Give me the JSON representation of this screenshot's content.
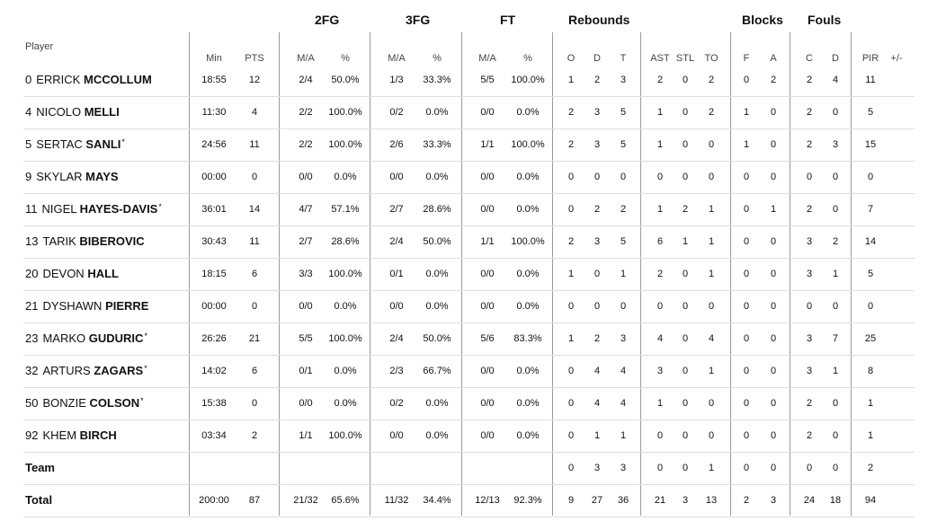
{
  "groups": {
    "fg2": "2FG",
    "fg3": "3FG",
    "ft": "FT",
    "rebounds": "Rebounds",
    "blocks": "Blocks",
    "fouls": "Fouls"
  },
  "headers": {
    "player": "Player",
    "min": "Min",
    "pts": "PTS",
    "fg2_ma": "M/A",
    "fg2_pct": "%",
    "fg3_ma": "M/A",
    "fg3_pct": "%",
    "ft_ma": "M/A",
    "ft_pct": "%",
    "o": "O",
    "d": "D",
    "t": "T",
    "ast": "AST",
    "stl": "STL",
    "to": "TO",
    "blk_f": "F",
    "blk_a": "A",
    "foul_c": "C",
    "foul_d": "D",
    "pir": "PIR",
    "pm": "+/-"
  },
  "rows": [
    {
      "num": "0",
      "first": "ERRICK",
      "last": "MCCOLLUM",
      "star": "",
      "min": "18:55",
      "pts": "12",
      "fg2_ma": "2/4",
      "fg2_pct": "50.0%",
      "fg3_ma": "1/3",
      "fg3_pct": "33.3%",
      "ft_ma": "5/5",
      "ft_pct": "100.0%",
      "o": "1",
      "d": "2",
      "t": "3",
      "ast": "2",
      "stl": "0",
      "to": "2",
      "blk_f": "0",
      "blk_a": "2",
      "foul_c": "2",
      "foul_d": "4",
      "pir": "11",
      "pm": ""
    },
    {
      "num": "4",
      "first": "NICOLO",
      "last": "MELLI",
      "star": "",
      "min": "11:30",
      "pts": "4",
      "fg2_ma": "2/2",
      "fg2_pct": "100.0%",
      "fg3_ma": "0/2",
      "fg3_pct": "0.0%",
      "ft_ma": "0/0",
      "ft_pct": "0.0%",
      "o": "2",
      "d": "3",
      "t": "5",
      "ast": "1",
      "stl": "0",
      "to": "2",
      "blk_f": "1",
      "blk_a": "0",
      "foul_c": "2",
      "foul_d": "0",
      "pir": "5",
      "pm": ""
    },
    {
      "num": "5",
      "first": "SERTAC",
      "last": "SANLI",
      "star": "*",
      "min": "24:56",
      "pts": "11",
      "fg2_ma": "2/2",
      "fg2_pct": "100.0%",
      "fg3_ma": "2/6",
      "fg3_pct": "33.3%",
      "ft_ma": "1/1",
      "ft_pct": "100.0%",
      "o": "2",
      "d": "3",
      "t": "5",
      "ast": "1",
      "stl": "0",
      "to": "0",
      "blk_f": "1",
      "blk_a": "0",
      "foul_c": "2",
      "foul_d": "3",
      "pir": "15",
      "pm": ""
    },
    {
      "num": "9",
      "first": "SKYLAR",
      "last": "MAYS",
      "star": "",
      "min": "00:00",
      "pts": "0",
      "fg2_ma": "0/0",
      "fg2_pct": "0.0%",
      "fg3_ma": "0/0",
      "fg3_pct": "0.0%",
      "ft_ma": "0/0",
      "ft_pct": "0.0%",
      "o": "0",
      "d": "0",
      "t": "0",
      "ast": "0",
      "stl": "0",
      "to": "0",
      "blk_f": "0",
      "blk_a": "0",
      "foul_c": "0",
      "foul_d": "0",
      "pir": "0",
      "pm": ""
    },
    {
      "num": "11",
      "first": "NIGEL",
      "last": "HAYES-DAVIS",
      "star": "*",
      "min": "36:01",
      "pts": "14",
      "fg2_ma": "4/7",
      "fg2_pct": "57.1%",
      "fg3_ma": "2/7",
      "fg3_pct": "28.6%",
      "ft_ma": "0/0",
      "ft_pct": "0.0%",
      "o": "0",
      "d": "2",
      "t": "2",
      "ast": "1",
      "stl": "2",
      "to": "1",
      "blk_f": "0",
      "blk_a": "1",
      "foul_c": "2",
      "foul_d": "0",
      "pir": "7",
      "pm": ""
    },
    {
      "num": "13",
      "first": "TARIK",
      "last": "BIBEROVIC",
      "star": "",
      "min": "30:43",
      "pts": "11",
      "fg2_ma": "2/7",
      "fg2_pct": "28.6%",
      "fg3_ma": "2/4",
      "fg3_pct": "50.0%",
      "ft_ma": "1/1",
      "ft_pct": "100.0%",
      "o": "2",
      "d": "3",
      "t": "5",
      "ast": "6",
      "stl": "1",
      "to": "1",
      "blk_f": "0",
      "blk_a": "0",
      "foul_c": "3",
      "foul_d": "2",
      "pir": "14",
      "pm": ""
    },
    {
      "num": "20",
      "first": "DEVON",
      "last": "HALL",
      "star": "",
      "min": "18:15",
      "pts": "6",
      "fg2_ma": "3/3",
      "fg2_pct": "100.0%",
      "fg3_ma": "0/1",
      "fg3_pct": "0.0%",
      "ft_ma": "0/0",
      "ft_pct": "0.0%",
      "o": "1",
      "d": "0",
      "t": "1",
      "ast": "2",
      "stl": "0",
      "to": "1",
      "blk_f": "0",
      "blk_a": "0",
      "foul_c": "3",
      "foul_d": "1",
      "pir": "5",
      "pm": ""
    },
    {
      "num": "21",
      "first": "DYSHAWN",
      "last": "PIERRE",
      "star": "",
      "min": "00:00",
      "pts": "0",
      "fg2_ma": "0/0",
      "fg2_pct": "0.0%",
      "fg3_ma": "0/0",
      "fg3_pct": "0.0%",
      "ft_ma": "0/0",
      "ft_pct": "0.0%",
      "o": "0",
      "d": "0",
      "t": "0",
      "ast": "0",
      "stl": "0",
      "to": "0",
      "blk_f": "0",
      "blk_a": "0",
      "foul_c": "0",
      "foul_d": "0",
      "pir": "0",
      "pm": ""
    },
    {
      "num": "23",
      "first": "MARKO",
      "last": "GUDURIC",
      "star": "*",
      "min": "26:26",
      "pts": "21",
      "fg2_ma": "5/5",
      "fg2_pct": "100.0%",
      "fg3_ma": "2/4",
      "fg3_pct": "50.0%",
      "ft_ma": "5/6",
      "ft_pct": "83.3%",
      "o": "1",
      "d": "2",
      "t": "3",
      "ast": "4",
      "stl": "0",
      "to": "4",
      "blk_f": "0",
      "blk_a": "0",
      "foul_c": "3",
      "foul_d": "7",
      "pir": "25",
      "pm": ""
    },
    {
      "num": "32",
      "first": "ARTURS",
      "last": "ZAGARS",
      "star": "*",
      "min": "14:02",
      "pts": "6",
      "fg2_ma": "0/1",
      "fg2_pct": "0.0%",
      "fg3_ma": "2/3",
      "fg3_pct": "66.7%",
      "ft_ma": "0/0",
      "ft_pct": "0.0%",
      "o": "0",
      "d": "4",
      "t": "4",
      "ast": "3",
      "stl": "0",
      "to": "1",
      "blk_f": "0",
      "blk_a": "0",
      "foul_c": "3",
      "foul_d": "1",
      "pir": "8",
      "pm": ""
    },
    {
      "num": "50",
      "first": "BONZIE",
      "last": "COLSON",
      "star": "*",
      "min": "15:38",
      "pts": "0",
      "fg2_ma": "0/0",
      "fg2_pct": "0.0%",
      "fg3_ma": "0/2",
      "fg3_pct": "0.0%",
      "ft_ma": "0/0",
      "ft_pct": "0.0%",
      "o": "0",
      "d": "4",
      "t": "4",
      "ast": "1",
      "stl": "0",
      "to": "0",
      "blk_f": "0",
      "blk_a": "0",
      "foul_c": "2",
      "foul_d": "0",
      "pir": "1",
      "pm": ""
    },
    {
      "num": "92",
      "first": "KHEM",
      "last": "BIRCH",
      "star": "",
      "min": "03:34",
      "pts": "2",
      "fg2_ma": "1/1",
      "fg2_pct": "100.0%",
      "fg3_ma": "0/0",
      "fg3_pct": "0.0%",
      "ft_ma": "0/0",
      "ft_pct": "0.0%",
      "o": "0",
      "d": "1",
      "t": "1",
      "ast": "0",
      "stl": "0",
      "to": "0",
      "blk_f": "0",
      "blk_a": "0",
      "foul_c": "2",
      "foul_d": "0",
      "pir": "1",
      "pm": ""
    }
  ],
  "team_row": {
    "label": "Team",
    "min": "",
    "pts": "",
    "fg2_ma": "",
    "fg2_pct": "",
    "fg3_ma": "",
    "fg3_pct": "",
    "ft_ma": "",
    "ft_pct": "",
    "o": "0",
    "d": "3",
    "t": "3",
    "ast": "0",
    "stl": "0",
    "to": "1",
    "blk_f": "0",
    "blk_a": "0",
    "foul_c": "0",
    "foul_d": "0",
    "pir": "2",
    "pm": ""
  },
  "total_row": {
    "label": "Total",
    "min": "200:00",
    "pts": "87",
    "fg2_ma": "21/32",
    "fg2_pct": "65.6%",
    "fg3_ma": "11/32",
    "fg3_pct": "34.4%",
    "ft_ma": "12/13",
    "ft_pct": "92.3%",
    "o": "9",
    "d": "27",
    "t": "36",
    "ast": "21",
    "stl": "3",
    "to": "13",
    "blk_f": "2",
    "blk_a": "3",
    "foul_c": "24",
    "foul_d": "18",
    "pir": "94",
    "pm": ""
  }
}
